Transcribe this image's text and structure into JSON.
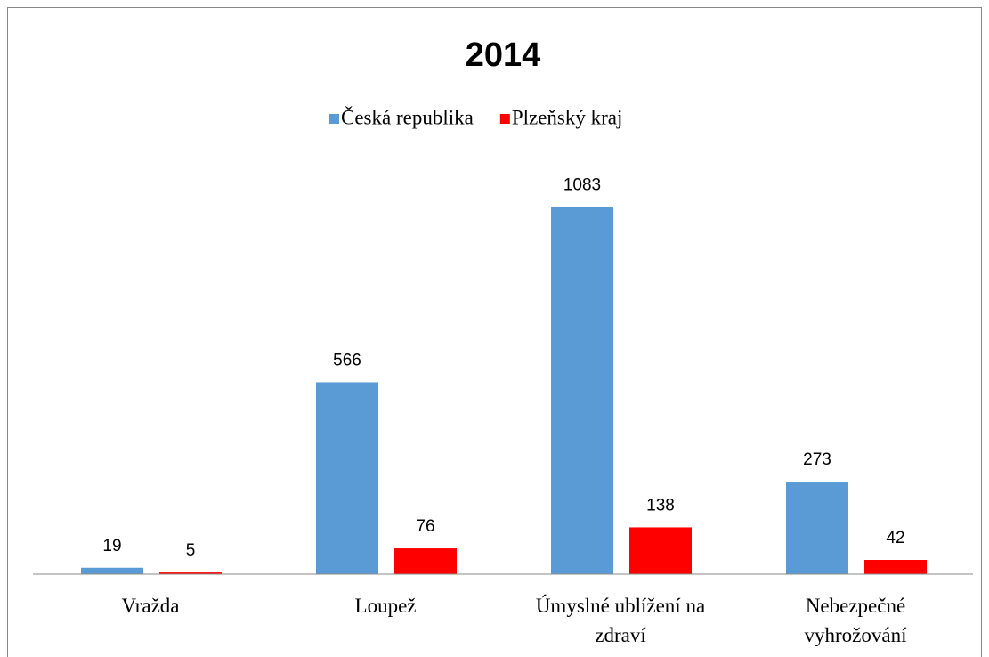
{
  "chart_data": {
    "type": "bar",
    "title": "2014",
    "categories": [
      "Vražda",
      "Loupež",
      "Úmyslné ublížení na zdraví",
      "Nebezpečné vyhrožování"
    ],
    "series": [
      {
        "name": "Česká republika",
        "color": "#5b9bd5",
        "values": [
          19,
          566,
          1083,
          273
        ]
      },
      {
        "name": "Plzeňský kraj",
        "color": "#ff0000",
        "values": [
          5,
          76,
          138,
          42
        ]
      }
    ],
    "ylim": [
      0,
      1200
    ],
    "legend": "top"
  }
}
